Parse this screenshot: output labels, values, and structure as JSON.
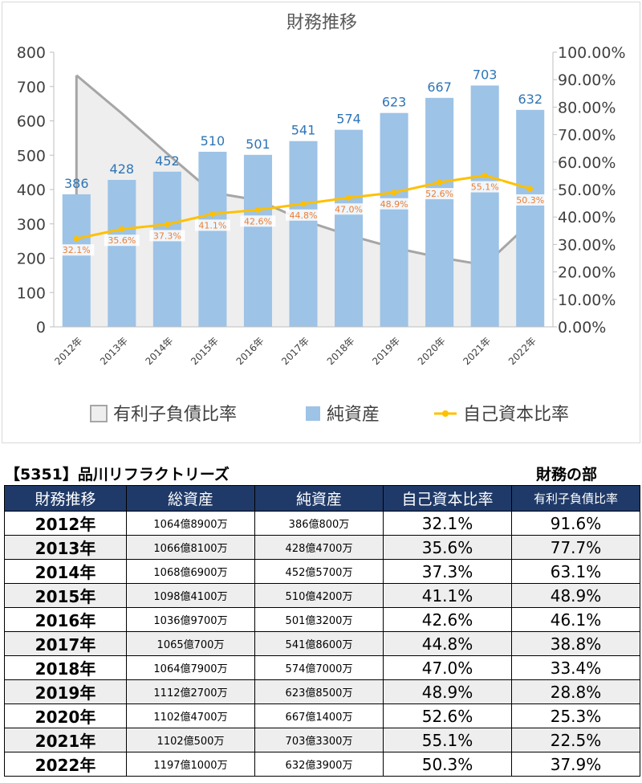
{
  "chart_data": {
    "type": "bar",
    "title": "財務推移",
    "categories": [
      "2012年",
      "2013年",
      "2014年",
      "2015年",
      "2016年",
      "2017年",
      "2018年",
      "2019年",
      "2020年",
      "2021年",
      "2022年"
    ],
    "series": [
      {
        "name": "有利子負債比率",
        "type": "area",
        "axis": "right",
        "values": [
          91.6,
          77.7,
          63.1,
          48.9,
          46.1,
          38.8,
          33.4,
          28.8,
          25.3,
          22.5,
          37.9
        ],
        "color": "#aaaaaa"
      },
      {
        "name": "純資産",
        "type": "bar",
        "axis": "left",
        "values": [
          386,
          428,
          452,
          510,
          501,
          541,
          574,
          623,
          667,
          703,
          632
        ],
        "color": "#9dc3e6"
      },
      {
        "name": "自己資本比率",
        "type": "line",
        "axis": "right",
        "values": [
          32.1,
          35.6,
          37.3,
          41.1,
          42.6,
          44.8,
          47.0,
          48.9,
          52.6,
          55.1,
          50.3
        ],
        "labels": [
          "32.1%",
          "35.6%",
          "37.3%",
          "41.1%",
          "42.6%",
          "44.8%",
          "47.0%",
          "48.9%",
          "52.6%",
          "55.1%",
          "50.3%"
        ],
        "color": "#ffc000"
      }
    ],
    "left_ticks": [
      "0",
      "100",
      "200",
      "300",
      "400",
      "500",
      "600",
      "700",
      "800"
    ],
    "right_ticks": [
      "0.00%",
      "10.00%",
      "20.00%",
      "30.00%",
      "40.00%",
      "50.00%",
      "60.00%",
      "70.00%",
      "80.00%",
      "90.00%",
      "100.00%"
    ],
    "ylim_left": [
      0,
      800
    ],
    "ylim_right": [
      0,
      100
    ],
    "grid": false,
    "legend": "bottom"
  },
  "table": {
    "company_title": "【5351】品川リフラクトリーズ",
    "section_title": "財務の部",
    "headers": [
      "財務推移",
      "総資産",
      "純資産",
      "自己資本比率",
      "有利子負債比率"
    ],
    "rows": [
      [
        "2012年",
        "1064億8900万",
        "386億800万",
        "32.1%",
        "91.6%"
      ],
      [
        "2013年",
        "1066億8100万",
        "428億4700万",
        "35.6%",
        "77.7%"
      ],
      [
        "2014年",
        "1068億6900万",
        "452億5700万",
        "37.3%",
        "63.1%"
      ],
      [
        "2015年",
        "1098億4100万",
        "510億4200万",
        "41.1%",
        "48.9%"
      ],
      [
        "2016年",
        "1036億9700万",
        "501億3200万",
        "42.6%",
        "46.1%"
      ],
      [
        "2017年",
        "1065億700万",
        "541億8600万",
        "44.8%",
        "38.8%"
      ],
      [
        "2018年",
        "1064億7900万",
        "574億7000万",
        "47.0%",
        "33.4%"
      ],
      [
        "2019年",
        "1112億2700万",
        "623億8500万",
        "48.9%",
        "28.8%"
      ],
      [
        "2020年",
        "1102億4700万",
        "667億1400万",
        "52.6%",
        "25.3%"
      ],
      [
        "2021年",
        "1102億500万",
        "703億3300万",
        "55.1%",
        "22.5%"
      ],
      [
        "2022年",
        "1197億1000万",
        "632億3900万",
        "50.3%",
        "37.9%"
      ]
    ]
  }
}
